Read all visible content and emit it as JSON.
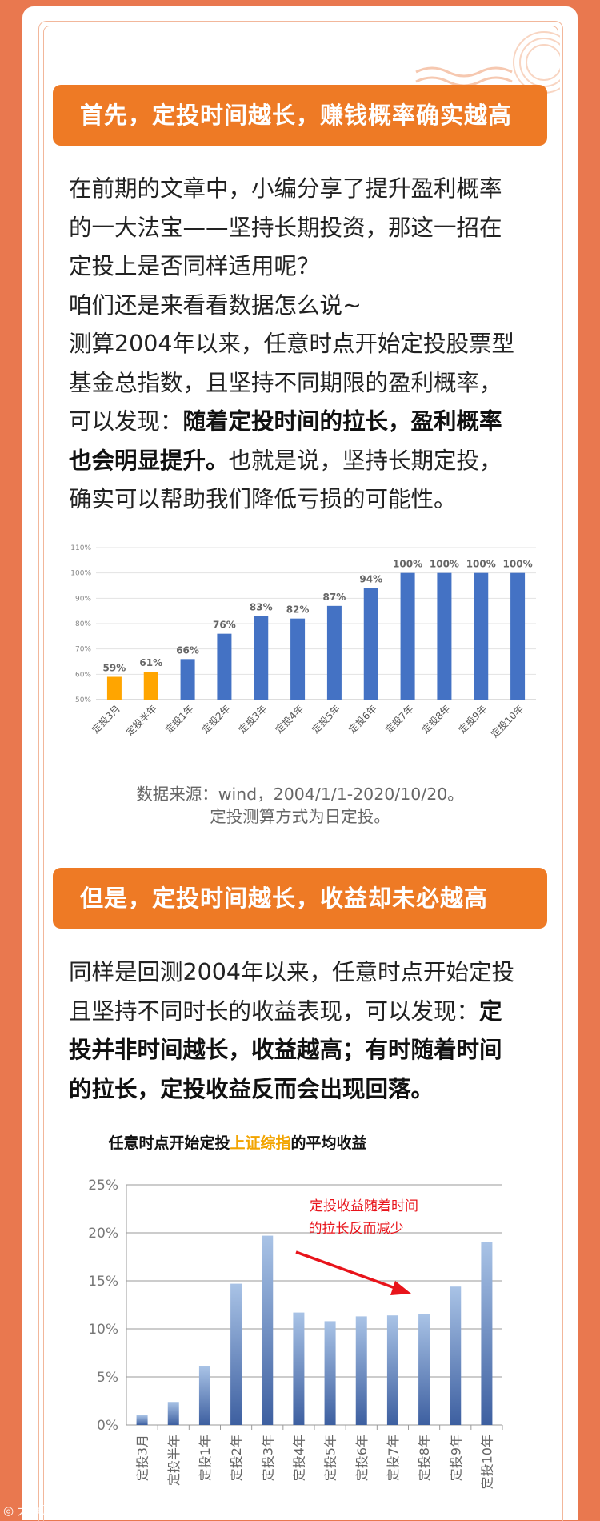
{
  "section1": {
    "banner": "首先，定投时间越长，赚钱概率确实越高",
    "paragraph_lines": [
      "在前期的文章中，小编分享了提升盈利概率",
      "的一大法宝——坚持长期投资，那这一招在",
      "定投上是否同样适用呢？",
      "咱们还是来看看数据怎么说~",
      "测算2004年以来，任意时点开始定投股票型",
      "基金总指数，且坚持不同期限的盈利概率，"
    ],
    "para_line7_prefix": "可以发现：",
    "para_line7_bold": "随着定投时间的拉长，盈利概率",
    "para_line8_bold": "也会明显提升。",
    "para_line8_suffix": "也就是说，坚持长期定投，",
    "para_line9": "确实可以帮助我们降低亏损的可能性。",
    "source_line1": "数据来源：wind，2004/1/1-2020/10/20。",
    "source_line2": "定投测算方式为日定投。"
  },
  "section2": {
    "banner": "但是，定投时间越长，收益却未必越高",
    "para_line1": "同样是回测2004年以来，任意时点开始定投",
    "para_line2_prefix": "且坚持不同时长的收益表现，可以发现：",
    "para_line2_bold": "定",
    "para_line3_bold": "投并非时间越长，收益越高；有时随着时间",
    "para_line4_bold": "的拉长，定投收益反而会出现回落。"
  },
  "colors": {
    "background": "#E9784F",
    "banner": "#EE7A25",
    "bar_blue": "#4472C4",
    "bar_orange": "#FFA500",
    "title_highlight": "#F2A400",
    "annotation_red": "#E8141B"
  },
  "chart_data": [
    {
      "type": "bar",
      "categories": [
        "定投3月",
        "定投半年",
        "定投1年",
        "定投2年",
        "定投3年",
        "定投4年",
        "定投5年",
        "定投6年",
        "定投7年",
        "定投8年",
        "定投9年",
        "定投10年"
      ],
      "values": [
        59,
        61,
        66,
        76,
        83,
        82,
        87,
        94,
        100,
        100,
        100,
        100
      ],
      "value_labels": [
        "59%",
        "61%",
        "66%",
        "76%",
        "83%",
        "82%",
        "87%",
        "94%",
        "100%",
        "100%",
        "100%",
        "100%"
      ],
      "highlight_colors": [
        "orange",
        "orange",
        "blue",
        "blue",
        "blue",
        "blue",
        "blue",
        "blue",
        "blue",
        "blue",
        "blue",
        "blue"
      ],
      "ylim": [
        50,
        110
      ],
      "y_ticks": [
        "50%",
        "60%",
        "70%",
        "80%",
        "90%",
        "100%",
        "110%"
      ],
      "grid": true
    },
    {
      "type": "bar",
      "title_prefix": "任意时点开始定投",
      "title_highlight": "上证综指",
      "title_suffix": "的平均收益",
      "categories": [
        "定投3月",
        "定投半年",
        "定投1年",
        "定投2年",
        "定投3年",
        "定投4年",
        "定投5年",
        "定投6年",
        "定投7年",
        "定投8年",
        "定投9年",
        "定投10年"
      ],
      "values": [
        1.0,
        2.4,
        6.1,
        14.7,
        19.7,
        11.7,
        10.8,
        11.3,
        11.4,
        11.5,
        14.4,
        19.0
      ],
      "ylim": [
        0,
        25
      ],
      "y_ticks": [
        "0%",
        "5%",
        "10%",
        "15%",
        "20%",
        "25%"
      ],
      "grid": true,
      "annotation_line1": "定投收益随着时间",
      "annotation_line2": "的拉长反而减少"
    }
  ],
  "watermark": "大鱼财经"
}
